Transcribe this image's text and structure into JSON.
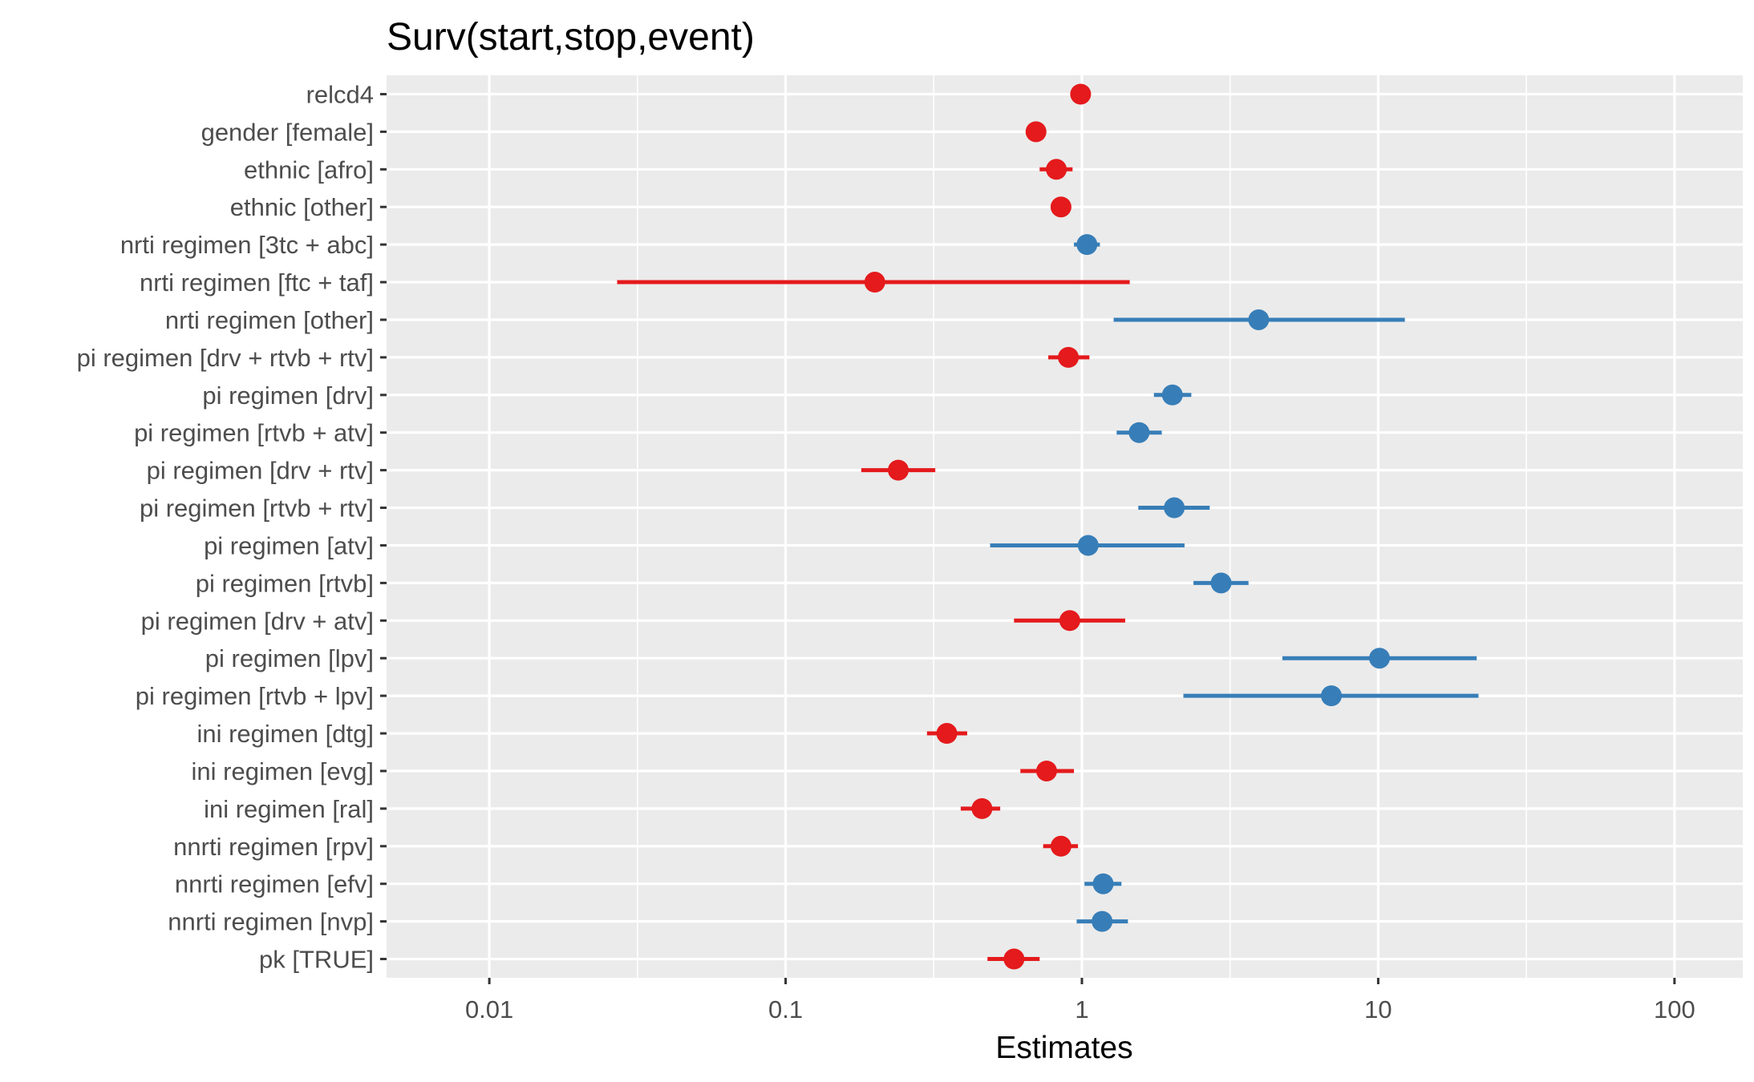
{
  "chart_data": {
    "type": "forest",
    "title": "Surv(start,stop,event)",
    "xlabel": "Estimates",
    "ylabel": "",
    "x_scale": "log10",
    "xlim": [
      0.0045,
      170
    ],
    "x_ticks": [
      {
        "value": 0.01,
        "label": "0.01"
      },
      {
        "value": 0.1,
        "label": "0.1"
      },
      {
        "value": 1,
        "label": "1"
      },
      {
        "value": 10,
        "label": "10"
      },
      {
        "value": 100,
        "label": "100"
      }
    ],
    "grid": true,
    "colors": {
      "negative": "#e41a1c",
      "positive": "#377eb8",
      "panel": "#ebebeb",
      "grid": "#ffffff"
    },
    "terms": [
      {
        "label": "relcd4",
        "estimate": 0.99,
        "low": 0.98,
        "high": 1.0,
        "direction": "negative"
      },
      {
        "label": "gender [female]",
        "estimate": 0.7,
        "low": 0.66,
        "high": 0.75,
        "direction": "negative"
      },
      {
        "label": "ethnic [afro]",
        "estimate": 0.82,
        "low": 0.72,
        "high": 0.93,
        "direction": "negative"
      },
      {
        "label": "ethnic [other]",
        "estimate": 0.85,
        "low": 0.82,
        "high": 0.88,
        "direction": "negative"
      },
      {
        "label": "nrti regimen [3tc + abc]",
        "estimate": 1.04,
        "low": 0.94,
        "high": 1.15,
        "direction": "positive"
      },
      {
        "label": "nrti regimen [ftc + taf]",
        "estimate": 0.2,
        "low": 0.027,
        "high": 1.45,
        "direction": "negative"
      },
      {
        "label": "nrti regimen [other]",
        "estimate": 3.95,
        "low": 1.28,
        "high": 12.3,
        "direction": "positive"
      },
      {
        "label": "pi regimen [drv + rtvb + rtv]",
        "estimate": 0.9,
        "low": 0.77,
        "high": 1.06,
        "direction": "negative"
      },
      {
        "label": "pi regimen [drv]",
        "estimate": 2.02,
        "low": 1.75,
        "high": 2.34,
        "direction": "positive"
      },
      {
        "label": "pi regimen [rtvb + atv]",
        "estimate": 1.56,
        "low": 1.31,
        "high": 1.86,
        "direction": "positive"
      },
      {
        "label": "pi regimen [drv + rtv]",
        "estimate": 0.24,
        "low": 0.18,
        "high": 0.32,
        "direction": "negative"
      },
      {
        "label": "pi regimen [rtvb + rtv]",
        "estimate": 2.05,
        "low": 1.55,
        "high": 2.7,
        "direction": "positive"
      },
      {
        "label": "pi regimen [atv]",
        "estimate": 1.05,
        "low": 0.49,
        "high": 2.22,
        "direction": "positive"
      },
      {
        "label": "pi regimen [rtvb]",
        "estimate": 2.95,
        "low": 2.38,
        "high": 3.65,
        "direction": "positive"
      },
      {
        "label": "pi regimen [drv + atv]",
        "estimate": 0.91,
        "low": 0.59,
        "high": 1.4,
        "direction": "negative"
      },
      {
        "label": "pi regimen [lpv]",
        "estimate": 10.1,
        "low": 4.75,
        "high": 21.5,
        "direction": "positive"
      },
      {
        "label": "pi regimen [rtvb + lpv]",
        "estimate": 6.95,
        "low": 2.2,
        "high": 21.8,
        "direction": "positive"
      },
      {
        "label": "ini regimen [dtg]",
        "estimate": 0.35,
        "low": 0.3,
        "high": 0.41,
        "direction": "negative"
      },
      {
        "label": "ini regimen [evg]",
        "estimate": 0.76,
        "low": 0.62,
        "high": 0.94,
        "direction": "negative"
      },
      {
        "label": "ini regimen [ral]",
        "estimate": 0.46,
        "low": 0.39,
        "high": 0.53,
        "direction": "negative"
      },
      {
        "label": "nnrti regimen [rpv]",
        "estimate": 0.85,
        "low": 0.74,
        "high": 0.97,
        "direction": "negative"
      },
      {
        "label": "nnrti regimen [efv]",
        "estimate": 1.18,
        "low": 1.02,
        "high": 1.36,
        "direction": "positive"
      },
      {
        "label": "nnrti regimen [nvp]",
        "estimate": 1.17,
        "low": 0.96,
        "high": 1.43,
        "direction": "positive"
      },
      {
        "label": "pk [TRUE]",
        "estimate": 0.59,
        "low": 0.48,
        "high": 0.72,
        "direction": "negative"
      }
    ]
  }
}
